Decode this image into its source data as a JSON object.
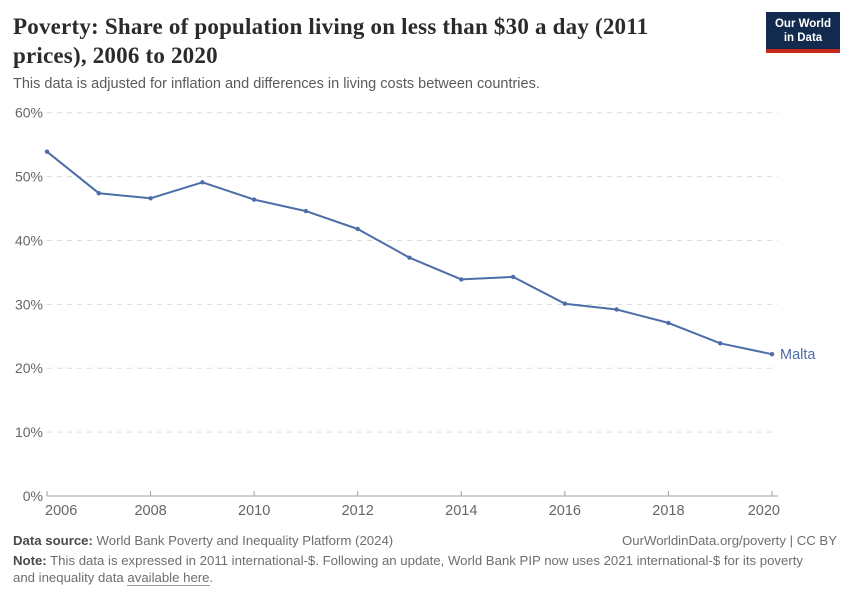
{
  "header": {
    "title": "Poverty: Share of population living on less than $30 a day (2011 prices), 2006 to 2020",
    "subtitle": "This data is adjusted for inflation and differences in living costs between countries.",
    "logo": {
      "line1": "Our World",
      "line2": "in Data",
      "bg_color": "#112A4E",
      "accent_color": "#C5291E"
    }
  },
  "chart_data": {
    "type": "line",
    "title": "Poverty: Share of population living on less than $30 a day (2011 prices), 2006 to 2020",
    "subtitle": "This data is adjusted for inflation and differences in living costs between countries.",
    "xlabel": "",
    "ylabel": "",
    "xlim": [
      2006,
      2020
    ],
    "ylim": [
      0,
      60
    ],
    "grid": "horizontal-dashed",
    "legend_position": "end-of-line-label",
    "x_ticks": [
      2006,
      2008,
      2010,
      2012,
      2014,
      2016,
      2018,
      2020
    ],
    "y_ticks": [
      {
        "value": 0,
        "label": "0%"
      },
      {
        "value": 10,
        "label": "10%"
      },
      {
        "value": 20,
        "label": "20%"
      },
      {
        "value": 30,
        "label": "30%"
      },
      {
        "value": 40,
        "label": "40%"
      },
      {
        "value": 50,
        "label": "50%"
      },
      {
        "value": 60,
        "label": "60%"
      }
    ],
    "series": [
      {
        "name": "Malta",
        "color": "#4C6EA8",
        "x": [
          2006,
          2007,
          2008,
          2009,
          2010,
          2011,
          2012,
          2013,
          2014,
          2015,
          2016,
          2017,
          2018,
          2019,
          2020
        ],
        "values": [
          53.9,
          47.4,
          46.6,
          49.1,
          46.4,
          44.6,
          41.8,
          37.3,
          33.9,
          34.3,
          30.1,
          29.2,
          27.1,
          23.9,
          22.2
        ]
      }
    ]
  },
  "footer": {
    "datasource_label": "Data source:",
    "datasource_value": " World Bank Poverty and Inequality Platform (2024)",
    "license": "OurWorldinData.org/poverty | CC BY",
    "note_label": "Note:",
    "note_text": " This data is expressed in 2011 international-$. Following an update, World Bank PIP now uses 2021 international-$ for its poverty and inequality data ",
    "note_link": "available here",
    "note_suffix": "."
  },
  "colors": {
    "line": "#4C6EA8",
    "gridline": "#dcdcdc",
    "axis": "#a0a0a0",
    "axis_label": "#666666",
    "title": "#2b2b2b",
    "subtitle": "#5b5b5b"
  }
}
